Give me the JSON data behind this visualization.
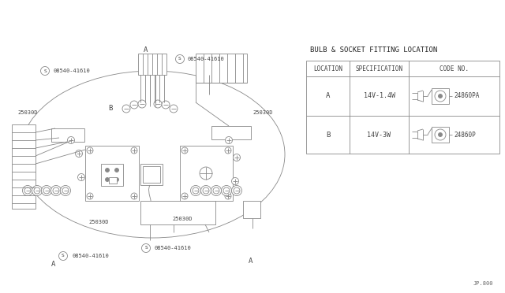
{
  "bg_color": "#ffffff",
  "line_color": "#888888",
  "lw": 0.6,
  "table_title": "BULB & SOCKET FITTING LOCATION",
  "col_headers": [
    "LOCATION",
    "SPECIFICATION",
    "CODE NO."
  ],
  "rows": [
    {
      "loc": "A",
      "spec": "14V-1.4W",
      "code": "24860PA"
    },
    {
      "loc": "B",
      "spec": "14V-3W",
      "code": "24860P"
    }
  ],
  "font_size_small": 5.0,
  "font_size_table": 5.5,
  "font_size_title": 6.5,
  "text_color": "#444444"
}
